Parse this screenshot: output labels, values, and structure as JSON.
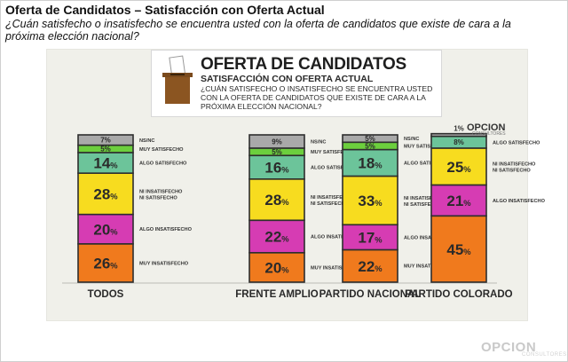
{
  "header": {
    "title": "Oferta de Candidatos – Satisfacción con Oferta Actual",
    "question": "¿Cuán satisfecho o insatisfecho se encuentra usted con la oferta de candidatos que existe de cara a la próxima elección nacional?"
  },
  "card": {
    "title": "OFERTA DE CANDIDATOS",
    "subtitle": "SATISFACCIÓN CON OFERTA ACTUAL",
    "question": "¿Cuán satisfecho o insatisfecho se encuentra usted con la oferta de candidatos que existe de cara a la próxima elección nacional?"
  },
  "logos": {
    "top": "OPCION",
    "bottom": "OPCION",
    "tagline": "CONSULTORES"
  },
  "colors": {
    "ns_nc": "#a9a9a9",
    "muy_satisfecho": "#6ccf3d",
    "algo_satisfecho": "#6cc49a",
    "ni_ni": "#f7dc1f",
    "algo_insatisfecho": "#d63cb3",
    "muy_insatisfecho": "#f07a1d",
    "outline": "#2e2e2e"
  },
  "chart_data": {
    "type": "bar",
    "stacked": true,
    "categories": [
      "TODOS",
      "FRENTE AMPLIO",
      "PARTIDO NACIONAL",
      "PARTIDO COLORADO"
    ],
    "series": [
      {
        "name": "MUY INSATISFECHO",
        "values": [
          26,
          20,
          22,
          45
        ],
        "labels": [
          "26%",
          "20%",
          "22%",
          "45%"
        ],
        "legend_text": [
          "MUY INSATISFECHO",
          "MUY INSATISFECHO",
          "MUY INSATISFECHO",
          ""
        ]
      },
      {
        "name": "ALGO INSATISFECHO",
        "values": [
          20,
          22,
          17,
          21
        ],
        "labels": [
          "20%",
          "22%",
          "17%",
          "21%"
        ],
        "legend_text": [
          "ALGO INSATISFECHO",
          "ALGO INSATISFECHO",
          "ALGO INSATISFECHO",
          "ALGO INSATISFECHO"
        ]
      },
      {
        "name": "NI INSATISFECHO NI SATISFECHO",
        "values": [
          28,
          28,
          33,
          25
        ],
        "labels": [
          "28%",
          "28%",
          "33%",
          "25%"
        ],
        "legend_text": [
          "NI INSATISFECHO NI SATISFECHO",
          "NI INSATISFECHO NI SATISFECHO",
          "NI INSATISFECHO NI SATISFECHO",
          "NI INSATISFECHO NI SATISFECHO"
        ]
      },
      {
        "name": "ALGO SATISFECHO",
        "values": [
          14,
          16,
          18,
          8
        ],
        "labels": [
          "14%",
          "16%",
          "18%",
          "8%"
        ],
        "legend_text": [
          "ALGO SATISFECHO",
          "ALGO SATISFECHO",
          "ALGO SATISFECHO",
          "ALGO SATISFECHO"
        ]
      },
      {
        "name": "MUY SATISFECHO",
        "values": [
          5,
          5,
          5,
          0
        ],
        "labels": [
          "5%",
          "5%",
          "5%",
          ""
        ],
        "legend_text": [
          "MUY SATISFECHO",
          "MUY SATISFECHO",
          "MUY SATISFECHO",
          ""
        ]
      },
      {
        "name": "NS/NC",
        "values": [
          7,
          9,
          5,
          1
        ],
        "labels": [
          "7%",
          "9%",
          "5%",
          "1%"
        ],
        "legend_text": [
          "NS/NC",
          "NS/NC",
          "NS/NC",
          ""
        ]
      }
    ],
    "ylim": [
      0,
      100
    ],
    "grid": false,
    "legend": "inline-right"
  }
}
